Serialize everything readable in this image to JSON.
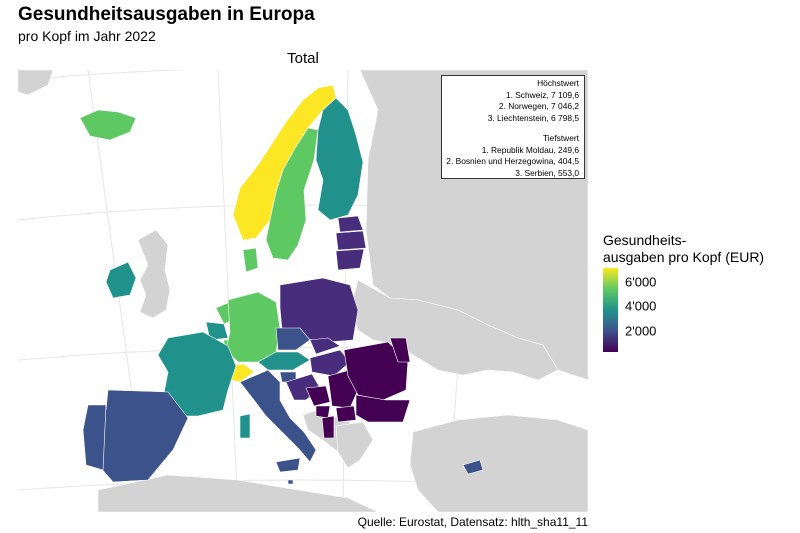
{
  "header": {
    "title": "Gesundheitsausgaben in Europa",
    "subtitle": "pro Kopf im Jahr 2022"
  },
  "panel": {
    "title": "Total"
  },
  "info_box": {
    "highest_heading": "Höchstwert",
    "highest": [
      "1. Schweiz, 7 109,6",
      "2. Norwegen, 7 046,2",
      "3. Liechtenstein, 6 798,5"
    ],
    "lowest_heading": "Tiefstwert",
    "lowest": [
      "1. Republik Moldau, 249,6",
      "2. Bosnien und Herzegowina, 404,5",
      "3. Serbien, 553,0"
    ]
  },
  "legend": {
    "title_line1": "Gesundheits-",
    "title_line2": "ausgaben pro Kopf (EUR)",
    "ticks": [
      "6'000",
      "4'000",
      "2'000"
    ],
    "tick_values": [
      6000,
      4000,
      2000
    ],
    "scale_min": 249.6,
    "scale_max": 7109.6,
    "palette": "viridis",
    "colors": [
      "#440154",
      "#3b528b",
      "#21918c",
      "#5ec962",
      "#fde725"
    ]
  },
  "colors": {
    "no_data": "#d3d3d3",
    "background": "#ffffff",
    "graticule": "#e6e6e6",
    "border": "#ffffff"
  },
  "source": "Quelle: Eurostat, Datensatz: hlth_sha11_11"
}
